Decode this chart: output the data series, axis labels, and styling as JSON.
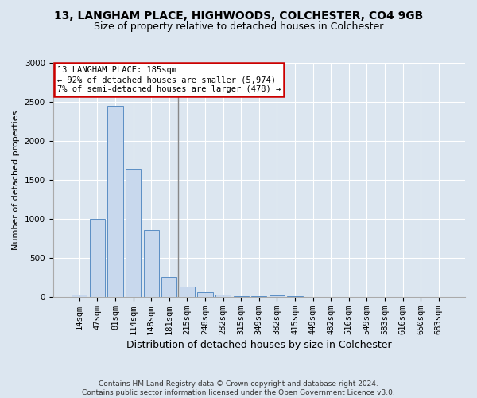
{
  "title_line1": "13, LANGHAM PLACE, HIGHWOODS, COLCHESTER, CO4 9GB",
  "title_line2": "Size of property relative to detached houses in Colchester",
  "xlabel": "Distribution of detached houses by size in Colchester",
  "ylabel": "Number of detached properties",
  "footer_line1": "Contains HM Land Registry data © Crown copyright and database right 2024.",
  "footer_line2": "Contains public sector information licensed under the Open Government Licence v3.0.",
  "annotation_line1": "13 LANGHAM PLACE: 185sqm",
  "annotation_line2": "← 92% of detached houses are smaller (5,974)",
  "annotation_line3": "7% of semi-detached houses are larger (478) →",
  "bar_labels": [
    "14sqm",
    "47sqm",
    "81sqm",
    "114sqm",
    "148sqm",
    "181sqm",
    "215sqm",
    "248sqm",
    "282sqm",
    "315sqm",
    "349sqm",
    "382sqm",
    "415sqm",
    "449sqm",
    "482sqm",
    "516sqm",
    "549sqm",
    "583sqm",
    "616sqm",
    "650sqm",
    "683sqm"
  ],
  "bar_values": [
    28,
    1000,
    2450,
    1640,
    855,
    250,
    128,
    62,
    28,
    12,
    8,
    22,
    4,
    0,
    0,
    0,
    0,
    0,
    0,
    0,
    0
  ],
  "bar_color": "#c8d8ed",
  "bar_edge_color": "#5b8ec4",
  "vline_color": "#888888",
  "ann_box_edge_color": "#cc0000",
  "ann_box_face_color": "#ffffff",
  "bg_color": "#dce6f0",
  "grid_color": "#ffffff",
  "ylim_max": 3000,
  "yticks": [
    0,
    500,
    1000,
    1500,
    2000,
    2500,
    3000
  ],
  "title_fontsize": 10,
  "subtitle_fontsize": 9,
  "ylabel_fontsize": 8,
  "xlabel_fontsize": 9,
  "tick_fontsize": 7.5,
  "ann_fontsize": 7.5,
  "footer_fontsize": 6.5
}
